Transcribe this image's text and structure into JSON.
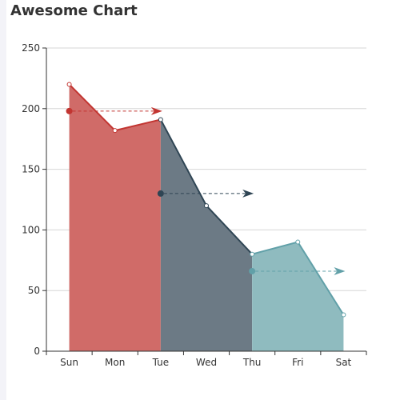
{
  "chart_data": {
    "type": "area",
    "title": "Awesome Chart",
    "categories": [
      "Sun",
      "Mon",
      "Tue",
      "Wed",
      "Thu",
      "Fri",
      "Sat"
    ],
    "values": [
      220,
      182,
      191,
      120,
      80,
      90,
      30
    ],
    "ylim": [
      0,
      250
    ],
    "yticks": [
      0,
      50,
      100,
      150,
      200,
      250
    ],
    "grid": true,
    "segments": [
      {
        "from": 0,
        "to": 2,
        "fill": "#d06b68",
        "line": "#c23531"
      },
      {
        "from": 2,
        "to": 4,
        "fill": "#6c7a85",
        "line": "#2f4554"
      },
      {
        "from": 4,
        "to": 6,
        "fill": "#8fbbbf",
        "line": "#61a0a8"
      }
    ],
    "arrows": [
      {
        "x_from": 0,
        "x_to": 2,
        "y": 198,
        "color": "#c23531"
      },
      {
        "x_from": 2,
        "x_to": 4,
        "y": 130,
        "color": "#2f4554"
      },
      {
        "x_from": 4,
        "x_to": 6,
        "y": 66,
        "color": "#61a0a8"
      }
    ]
  }
}
